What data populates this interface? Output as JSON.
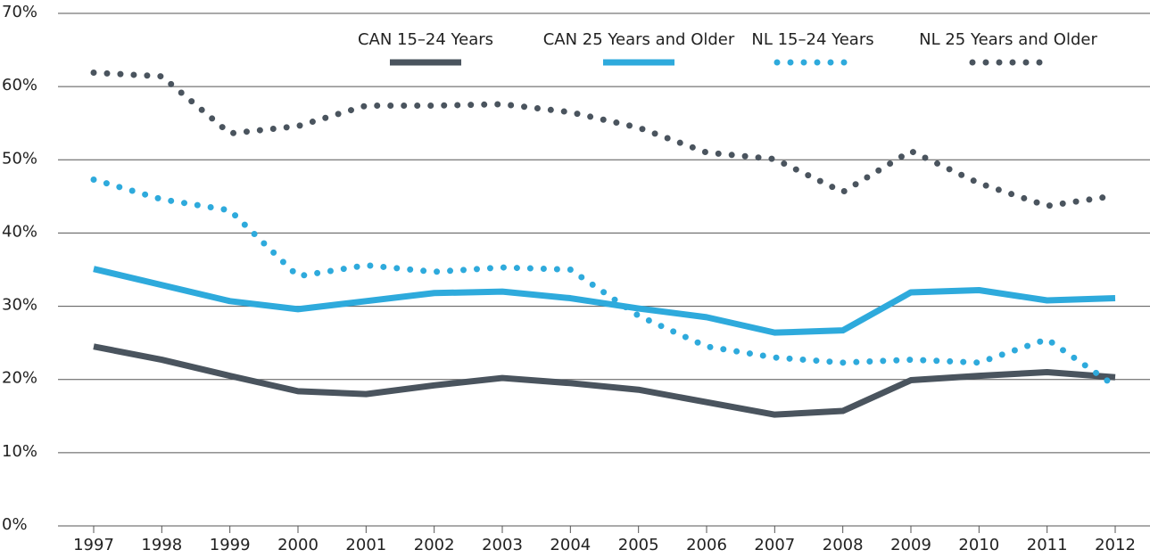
{
  "chart_data": {
    "type": "line",
    "categories": [
      "1997",
      "1998",
      "1999",
      "2000",
      "2001",
      "2002",
      "2003",
      "2004",
      "2005",
      "2006",
      "2007",
      "2008",
      "2009",
      "2010",
      "2011",
      "2012"
    ],
    "series": [
      {
        "name": "CAN 15–24 Years",
        "color": "#4a545e",
        "style": "solid",
        "values": [
          24.5,
          22.7,
          20.5,
          18.4,
          18.0,
          19.2,
          20.2,
          19.5,
          18.6,
          16.9,
          15.2,
          15.7,
          19.9,
          20.5,
          21.0,
          20.3
        ]
      },
      {
        "name": "CAN 25 Years and Older",
        "color": "#2eaadc",
        "style": "solid",
        "values": [
          35.1,
          32.9,
          30.7,
          29.6,
          30.7,
          31.8,
          32.0,
          31.1,
          29.7,
          28.5,
          26.4,
          26.7,
          31.9,
          32.2,
          30.8,
          31.1
        ]
      },
      {
        "name": "NL 15–24 Years",
        "color": "#2eaadc",
        "style": "dotted",
        "values": [
          47.3,
          44.6,
          43.1,
          34.1,
          35.6,
          34.7,
          35.3,
          35.0,
          28.7,
          24.5,
          23.0,
          22.3,
          22.7,
          22.3,
          25.5,
          19.1
        ]
      },
      {
        "name": "NL 25 Years and Older",
        "color": "#4a545e",
        "style": "dotted",
        "values": [
          61.9,
          61.4,
          53.6,
          54.6,
          57.4,
          57.4,
          57.6,
          56.5,
          54.4,
          51.0,
          50.1,
          45.6,
          51.2,
          46.8,
          43.7,
          45.1
        ]
      }
    ],
    "ylim": [
      0,
      70
    ],
    "yticks": [
      {
        "value": 0,
        "label": "0%"
      },
      {
        "value": 10,
        "label": "10%"
      },
      {
        "value": 20,
        "label": "20%"
      },
      {
        "value": 30,
        "label": "30%"
      },
      {
        "value": 40,
        "label": "40%"
      },
      {
        "value": 50,
        "label": "50%"
      },
      {
        "value": 60,
        "label": "60%"
      },
      {
        "value": 70,
        "label": "70%"
      }
    ],
    "grid": true,
    "legend": "top-right"
  }
}
